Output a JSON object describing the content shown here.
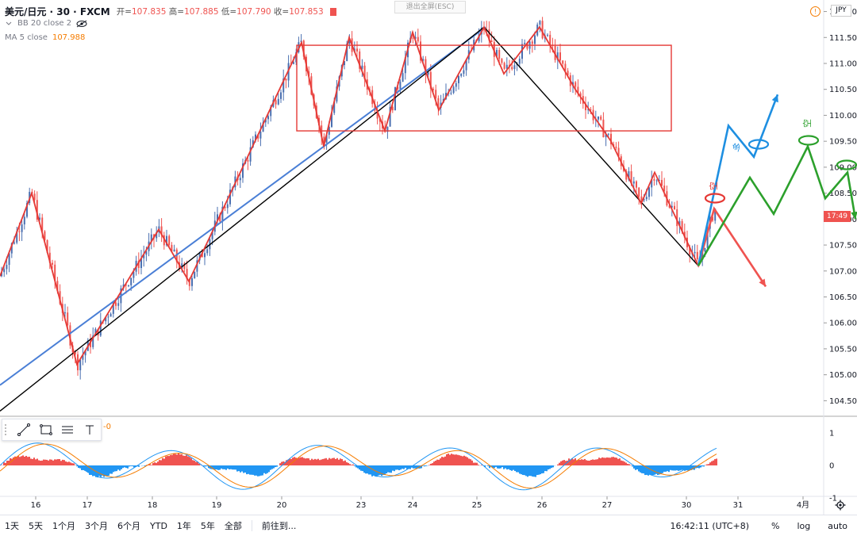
{
  "header": {
    "symbol": "美元/日元 · 30 · FXCM",
    "open_label": "开=",
    "open": "107.835",
    "high_label": "高=",
    "high": "107.885",
    "low_label": "低=",
    "low": "107.790",
    "close_label": "收=",
    "close": "107.853"
  },
  "indicators": [
    {
      "name": "BB 20 close 2",
      "value": ""
    },
    {
      "name": "MA 5 close",
      "value": "107.988"
    }
  ],
  "exit_fullscreen": "退出全屏(ESC)",
  "currency_badge": "JPY",
  "alert_icon_glyph": "!",
  "current_time_tag": "17:49",
  "macd_value": "-0",
  "chart_annotations": {
    "short_1": "空",
    "long_1": "多",
    "short_2": "空"
  },
  "chart_data": {
    "type": "candlestick",
    "price_axis": [
      "112.000",
      "111.500",
      "111.000",
      "110.500",
      "110.000",
      "109.500",
      "109.000",
      "108.500",
      "108.000",
      "107.500",
      "107.000",
      "106.500",
      "106.000",
      "105.500",
      "105.000",
      "104.500"
    ],
    "macd_axis": [
      "1",
      "0",
      "-1"
    ],
    "x_labels": [
      "16",
      "17",
      "18",
      "19",
      "20",
      "23",
      "24",
      "25",
      "26",
      "27",
      "30",
      "31",
      "4月"
    ],
    "ylim": [
      104.2,
      112.1
    ],
    "zigzag_points": [
      [
        0,
        106.9
      ],
      [
        40,
        108.5
      ],
      [
        97,
        105.2
      ],
      [
        200,
        107.8
      ],
      [
        238,
        106.8
      ],
      [
        380,
        111.4
      ],
      [
        408,
        109.4
      ],
      [
        440,
        111.5
      ],
      [
        485,
        109.7
      ],
      [
        520,
        111.6
      ],
      [
        553,
        110.1
      ],
      [
        610,
        111.7
      ],
      [
        635,
        110.8
      ],
      [
        680,
        111.7
      ],
      [
        725,
        110.5
      ],
      [
        770,
        109.5
      ],
      [
        808,
        108.3
      ],
      [
        825,
        108.9
      ],
      [
        880,
        107.1
      ],
      [
        900,
        108.2
      ]
    ],
    "consolidation_box": {
      "top": 111.35,
      "bottom": 109.7
    },
    "trendlines": [
      {
        "color": "#4a7fd6",
        "from": [
          0,
          104.8
        ],
        "to": [
          612,
          111.7
        ]
      },
      {
        "color": "#000000",
        "from": [
          0,
          104.3
        ],
        "to": [
          610,
          111.7
        ]
      },
      {
        "color": "#000000",
        "from": [
          610,
          111.7
        ],
        "to": [
          880,
          107.1
        ]
      }
    ],
    "forecast_paths": [
      {
        "color": "#ef5350",
        "points": [
          [
            880,
            107.1
          ],
          [
            900,
            108.2
          ],
          [
            965,
            106.7
          ]
        ]
      },
      {
        "color": "#1e8fe1",
        "points": [
          [
            880,
            107.1
          ],
          [
            918,
            109.8
          ],
          [
            950,
            109.2
          ],
          [
            980,
            110.4
          ]
        ]
      },
      {
        "color": "#2ca02c",
        "points": [
          [
            880,
            107.1
          ],
          [
            945,
            108.8
          ],
          [
            975,
            108.1
          ],
          [
            1018,
            109.4
          ],
          [
            1040,
            108.4
          ],
          [
            1068,
            108.9
          ],
          [
            1078,
            108.0
          ]
        ]
      }
    ]
  },
  "toolbox": {
    "icons": [
      "trendline-icon",
      "rectangle-icon",
      "fib-icon",
      "text-icon"
    ]
  },
  "bottom": {
    "ranges": [
      "1天",
      "5天",
      "1个月",
      "3个月",
      "6个月",
      "YTD",
      "1年",
      "5年",
      "全部"
    ],
    "goto": "前往到...",
    "clock": "16:42:11 (UTC+8)",
    "percent": "%",
    "log": "log",
    "auto": "auto"
  }
}
